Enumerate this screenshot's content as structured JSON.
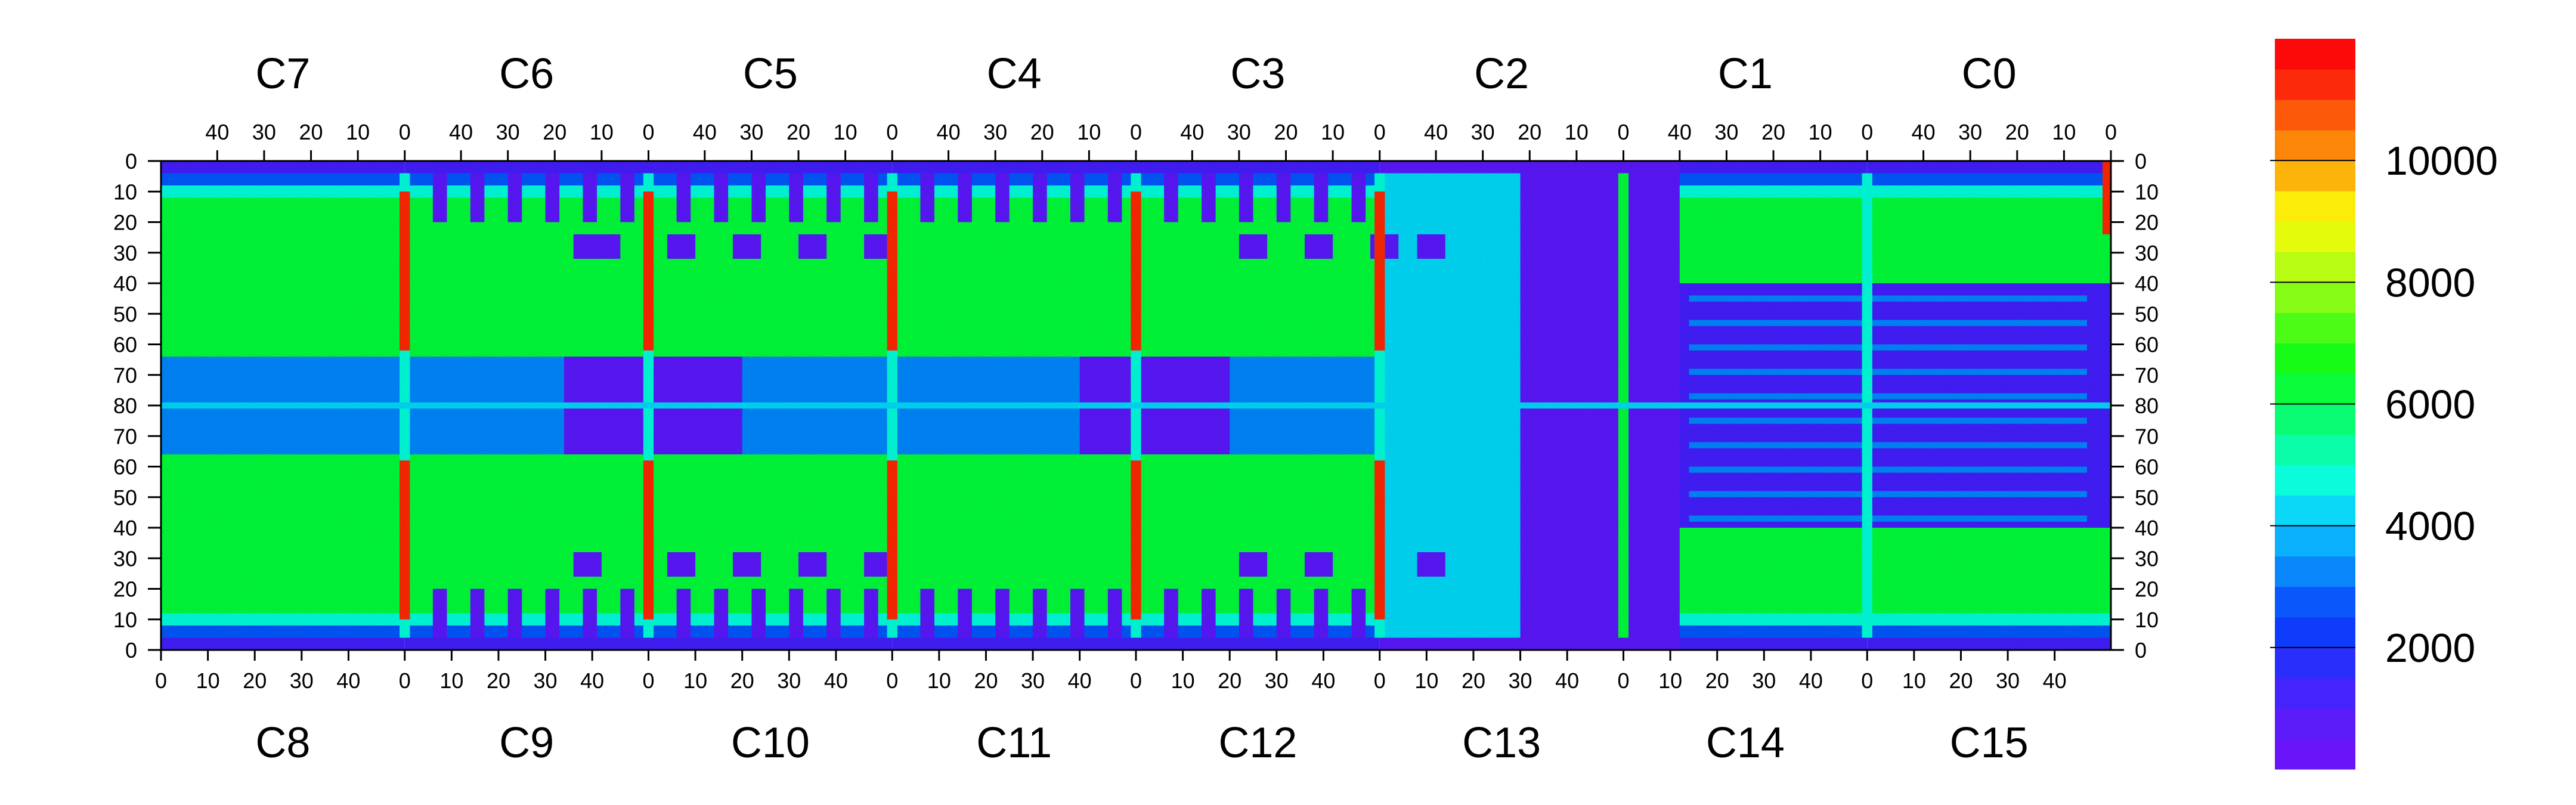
{
  "chart_data": {
    "type": "heatmap",
    "top_chip_labels": [
      "C7",
      "C6",
      "C5",
      "C4",
      "C3",
      "C2",
      "C1",
      "C0"
    ],
    "bottom_chip_labels": [
      "C8",
      "C9",
      "C10",
      "C11",
      "C12",
      "C13",
      "C14",
      "C15"
    ],
    "top_x_ticks": [
      "40",
      "30",
      "20",
      "10",
      "0"
    ],
    "bottom_x_ticks": [
      "0",
      "10",
      "20",
      "30",
      "40"
    ],
    "y_ticks": [
      "0",
      "10",
      "20",
      "30",
      "40",
      "50",
      "60",
      "70",
      "80",
      "70",
      "60",
      "50",
      "40",
      "30",
      "20",
      "10",
      "0"
    ],
    "y_range": [
      0,
      160
    ],
    "columns_per_chip": 52,
    "zlim": [
      0,
      12000
    ],
    "colorbar_ticks": [
      {
        "value": 2000,
        "label": "2000"
      },
      {
        "value": 4000,
        "label": "4000"
      },
      {
        "value": 6000,
        "label": "6000"
      },
      {
        "value": 8000,
        "label": "8000"
      },
      {
        "value": 10000,
        "label": "10000"
      }
    ],
    "palette": [
      "#6a14fa",
      "#5c1cfa",
      "#4424fb",
      "#2a2efb",
      "#0f3cfb",
      "#0a58fb",
      "#0a86fb",
      "#0ab0fb",
      "#0ad8f6",
      "#0afcda",
      "#0afca8",
      "#0afc72",
      "#0afc3a",
      "#16fc16",
      "#4cfc16",
      "#86fc16",
      "#b8fc14",
      "#e4fc0c",
      "#fcec0a",
      "#fcb40a",
      "#fc860a",
      "#fc5a0a",
      "#fc2a0a",
      "#fc0a0a"
    ]
  }
}
